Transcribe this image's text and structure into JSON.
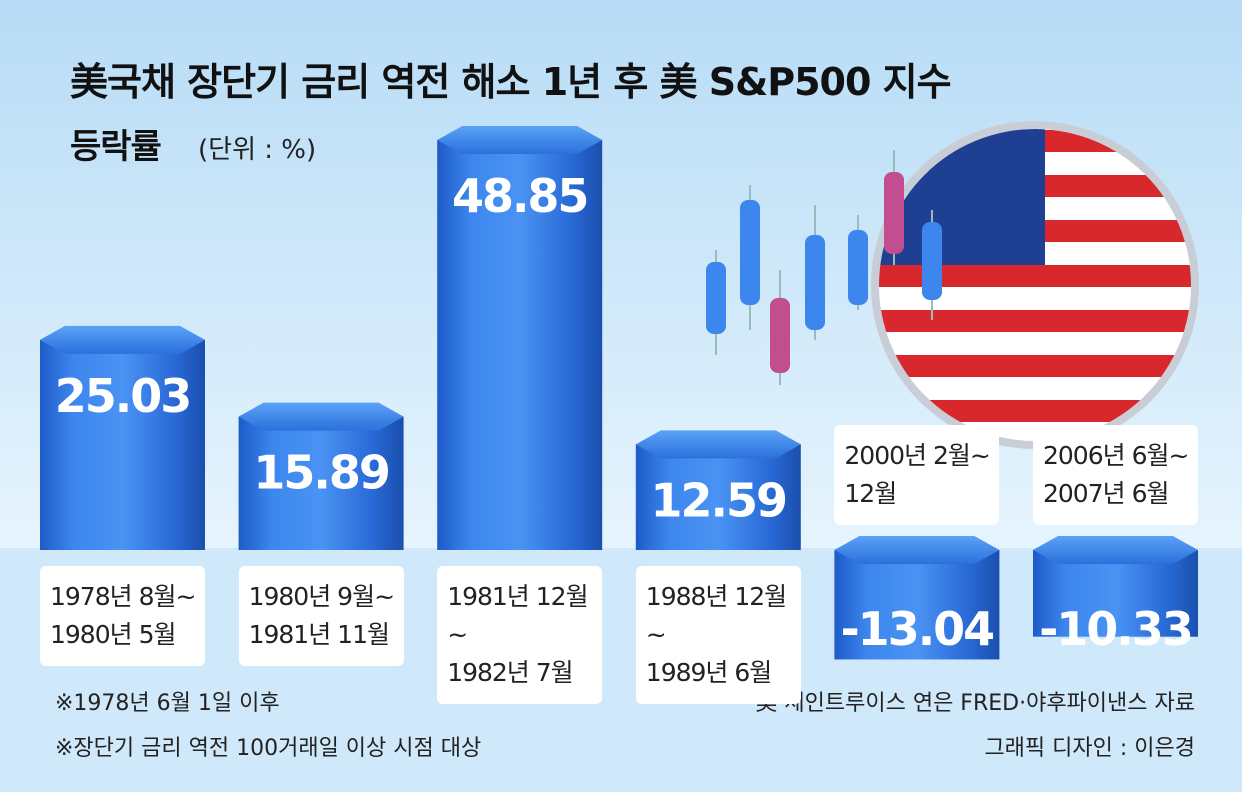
{
  "chart_data": {
    "type": "bar",
    "title": "美국채 장단기 금리 역전 해소 1년 후 美 S&P500 지수",
    "subtitle": "등락률",
    "unit": "(단위 : %)",
    "categories": [
      "1978년 8월~\n1980년 5월",
      "1980년 9월~\n1981년 11월",
      "1981년 12월~\n1982년 7월",
      "1988년 12월~\n1989년 6월",
      "2000년 2월~\n12월",
      "2006년 6월~\n2007년 6월"
    ],
    "values": [
      25.03,
      15.89,
      48.85,
      12.59,
      -13.04,
      -10.33
    ],
    "color": "#2f6fd8",
    "notes": [
      "※1978년 6월 1일 이후",
      "※장단기 금리 역전 100거래일 이상 시점 대상"
    ],
    "source": "美 세인트루이스 연은 FRED·야후파이낸스 자료",
    "credit": "그래픽 디자인 : 이은경"
  }
}
